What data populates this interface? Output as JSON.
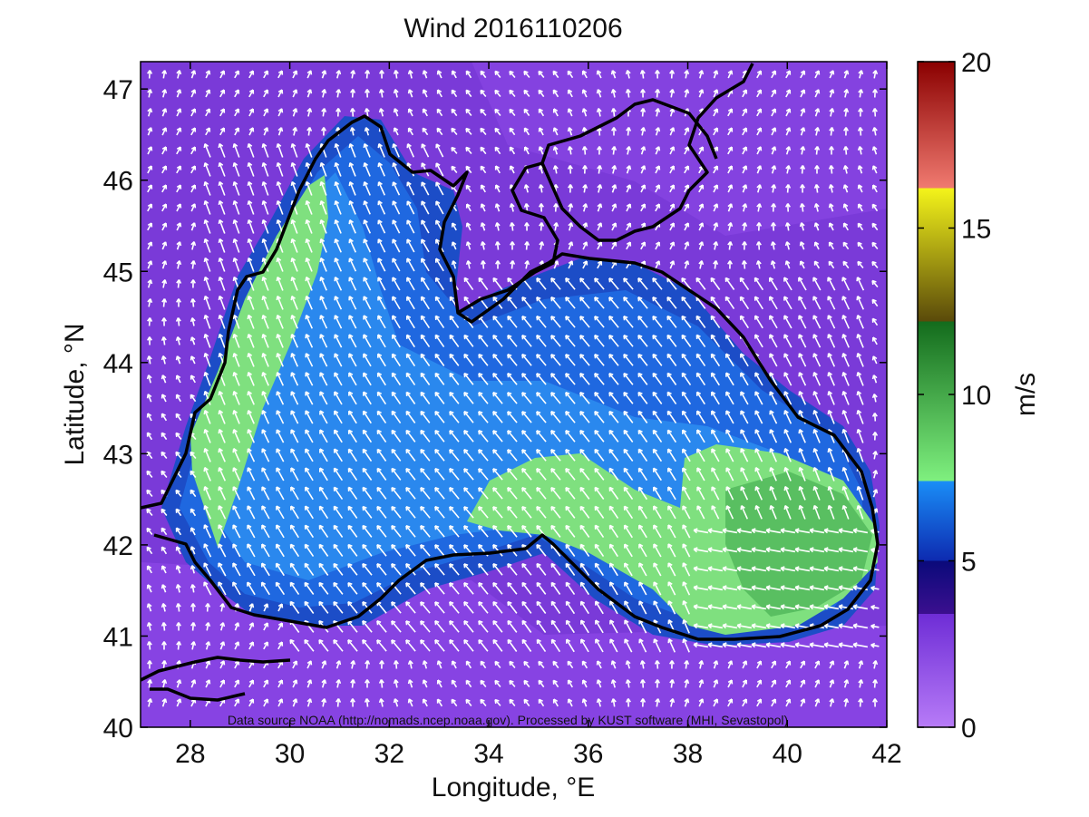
{
  "title": "Wind 2016110206",
  "map": {
    "xlabel": "Longitude, °E",
    "ylabel": "Latitude, °N",
    "xticks": [
      "28",
      "30",
      "32",
      "34",
      "36",
      "38",
      "40",
      "42"
    ],
    "yticks": [
      "40",
      "41",
      "42",
      "43",
      "44",
      "45",
      "46",
      "47"
    ],
    "xlim": [
      27,
      42
    ],
    "ylim": [
      40,
      47.3
    ],
    "credit": "Data source NOAA (http://nomads.ncep.noaa.gov). Processed by KUST software (MHI, Sevastopol)"
  },
  "colorbar": {
    "label": "m/s",
    "ticks": [
      "0",
      "5",
      "10",
      "15",
      "20"
    ],
    "range": [
      0,
      20
    ],
    "bands": [
      {
        "from": 0,
        "to": 3.4,
        "color": "#a24cf0"
      },
      {
        "from": 3.4,
        "to": 5,
        "color": "#1a0a96"
      },
      {
        "from": 5,
        "to": 7.4,
        "color": "#1f6fe6"
      },
      {
        "from": 7.4,
        "to": 12.3,
        "color": "#53c25a"
      },
      {
        "from": 12.3,
        "to": 16.2,
        "color": "#9a8a16"
      },
      {
        "from": 16.2,
        "to": 20,
        "color": "#b81c1c"
      }
    ]
  },
  "colors": {
    "land_background": "#7f3fdc",
    "sea_blue": "#1f5fd8",
    "sea_light": "#2a8ef0",
    "wind_max": "#7fe07f",
    "coast": "#000000",
    "arrow": "#ffffff"
  },
  "wind_field": {
    "direction_over_sea": "north-west",
    "max_zone_speed": 9.5
  }
}
